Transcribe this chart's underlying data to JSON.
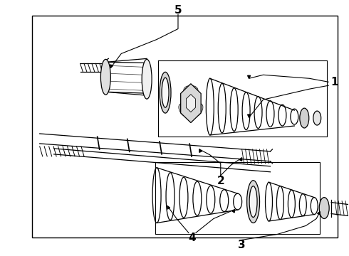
{
  "bg_color": "#ffffff",
  "border_color": "#000000",
  "line_color": "#000000",
  "label_color": "#000000",
  "fig_width": 4.9,
  "fig_height": 3.6,
  "dpi": 100,
  "border": [
    0.09,
    0.06,
    0.97,
    0.93
  ]
}
